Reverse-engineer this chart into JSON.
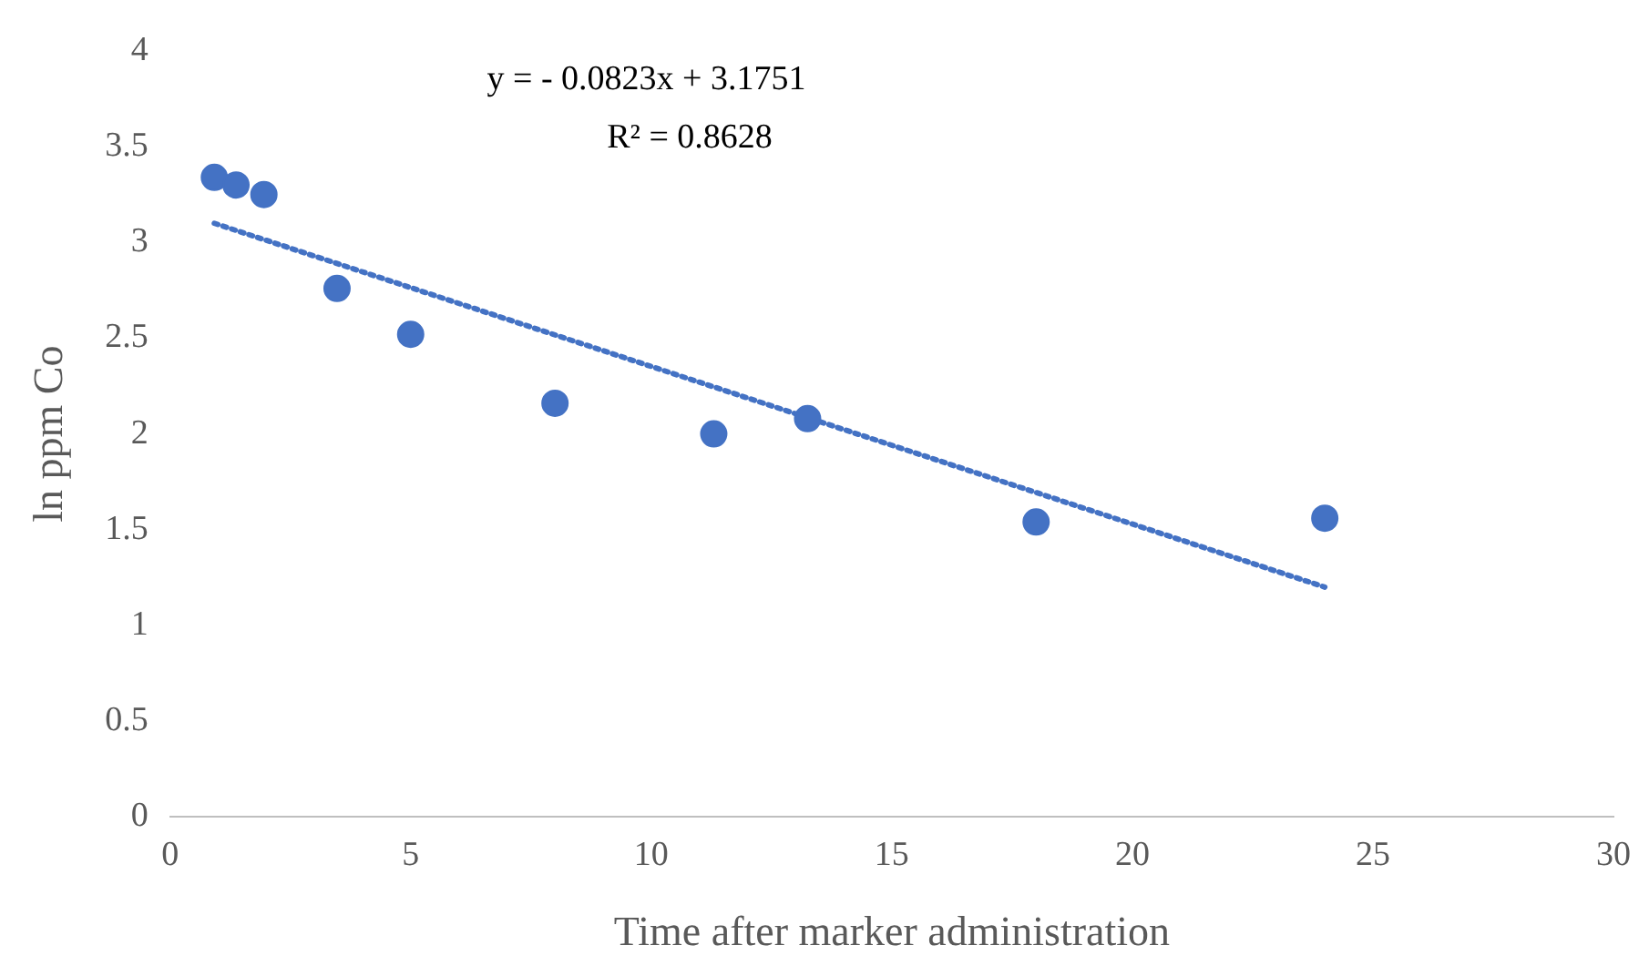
{
  "chart_data": {
    "type": "scatter",
    "xlabel": "Time after marker administration",
    "ylabel": "ln ppm Co",
    "annotations": [
      "y = - 0.0823x + 3.1751",
      "R² = 0.8628"
    ],
    "xlim": [
      0,
      30
    ],
    "xticks": [
      0,
      5,
      10,
      15,
      20,
      25,
      30
    ],
    "ylim": [
      0,
      4
    ],
    "yticks": [
      0,
      0.5,
      1,
      1.5,
      2,
      2.5,
      3,
      3.5,
      4
    ],
    "grid": false,
    "legend": false,
    "marker": "circle",
    "series": [
      {
        "color": "#4472c4",
        "x": [
          0.92,
          1.37,
          1.95,
          3.47,
          5.0,
          8.0,
          11.3,
          13.25,
          18.0,
          24.0
        ],
        "values": [
          3.34,
          3.3,
          3.25,
          2.76,
          2.52,
          2.16,
          2.0,
          2.08,
          1.54,
          1.56
        ]
      },
      {
        "type": "line",
        "color": "#4472c4",
        "line_style": "dotted",
        "marker": "none",
        "x": [
          0.92,
          24.0
        ],
        "values": [
          3.1,
          1.2
        ]
      }
    ]
  }
}
